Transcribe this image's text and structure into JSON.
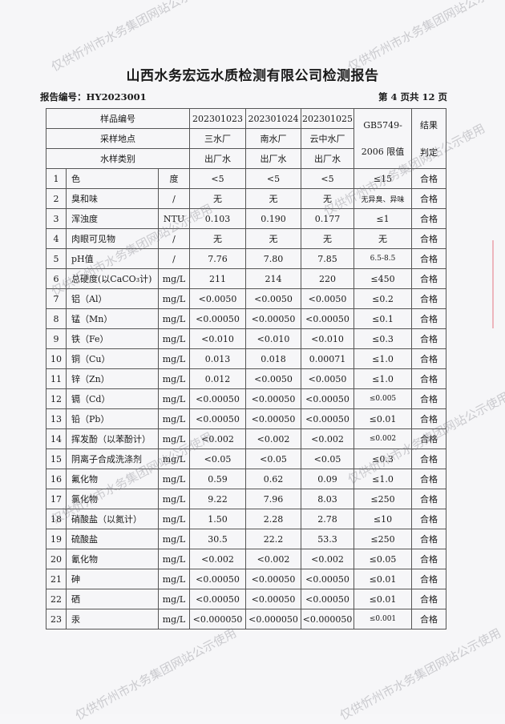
{
  "title": "山西水务宏远水质检测有限公司检测报告",
  "report_no": "报告编号：HY2023001",
  "page_info": "第 4 页共 12 页",
  "watermark": "仅供忻州市水务集团网站公示使用",
  "header": {
    "sample_no_label": "样品编号",
    "location_label": "采样地点",
    "type_label": "水样类别",
    "samples": [
      {
        "no": "202301023",
        "location": "三水厂",
        "type": "出厂水"
      },
      {
        "no": "202301024",
        "location": "南水厂",
        "type": "出厂水"
      },
      {
        "no": "202301025",
        "location": "云中水厂",
        "type": "出厂水"
      }
    ],
    "limit_label_1": "GB5749-",
    "limit_label_2": "2006 限值",
    "result_label_1": "结果",
    "result_label_2": "判定"
  },
  "rows": [
    {
      "n": "1",
      "item": "色",
      "unit": "度",
      "v": [
        "<5",
        "<5",
        "<5"
      ],
      "limit": "≤15",
      "result": "合格"
    },
    {
      "n": "2",
      "item": "臭和味",
      "unit": "/",
      "v": [
        "无",
        "无",
        "无"
      ],
      "limit": "无异臭、异味",
      "result": "合格"
    },
    {
      "n": "3",
      "item": "浑浊度",
      "unit": "NTU",
      "v": [
        "0.103",
        "0.190",
        "0.177"
      ],
      "limit": "≤1",
      "result": "合格"
    },
    {
      "n": "4",
      "item": "肉眼可见物",
      "unit": "/",
      "v": [
        "无",
        "无",
        "无"
      ],
      "limit": "无",
      "result": "合格"
    },
    {
      "n": "5",
      "item": "pH值",
      "unit": "/",
      "v": [
        "7.76",
        "7.80",
        "7.85"
      ],
      "limit": "6.5-8.5",
      "result": "合格"
    },
    {
      "n": "6",
      "item": "总硬度(以CaCO₃计)",
      "unit": "mg/L",
      "v": [
        "211",
        "214",
        "220"
      ],
      "limit": "≤450",
      "result": "合格"
    },
    {
      "n": "7",
      "item": "铝（Al）",
      "unit": "mg/L",
      "v": [
        "<0.0050",
        "<0.0050",
        "<0.0050"
      ],
      "limit": "≤0.2",
      "result": "合格"
    },
    {
      "n": "8",
      "item": "锰（Mn）",
      "unit": "mg/L",
      "v": [
        "<0.00050",
        "<0.00050",
        "<0.00050"
      ],
      "limit": "≤0.1",
      "result": "合格"
    },
    {
      "n": "9",
      "item": "铁（Fe）",
      "unit": "mg/L",
      "v": [
        "<0.010",
        "<0.010",
        "<0.010"
      ],
      "limit": "≤0.3",
      "result": "合格"
    },
    {
      "n": "10",
      "item": "铜（Cu）",
      "unit": "mg/L",
      "v": [
        "0.013",
        "0.018",
        "0.00071"
      ],
      "limit": "≤1.0",
      "result": "合格"
    },
    {
      "n": "11",
      "item": "锌（Zn）",
      "unit": "mg/L",
      "v": [
        "0.012",
        "<0.0050",
        "<0.0050"
      ],
      "limit": "≤1.0",
      "result": "合格"
    },
    {
      "n": "12",
      "item": "镉（Cd）",
      "unit": "mg/L",
      "v": [
        "<0.00050",
        "<0.00050",
        "<0.00050"
      ],
      "limit": "≤0.005",
      "result": "合格"
    },
    {
      "n": "13",
      "item": "铅（Pb）",
      "unit": "mg/L",
      "v": [
        "<0.00050",
        "<0.00050",
        "<0.00050"
      ],
      "limit": "≤0.01",
      "result": "合格"
    },
    {
      "n": "14",
      "item": "挥发酚（以苯酚计）",
      "unit": "mg/L",
      "v": [
        "<0.002",
        "<0.002",
        "<0.002"
      ],
      "limit": "≤0.002",
      "result": "合格"
    },
    {
      "n": "15",
      "item": "阴离子合成洗涤剂",
      "unit": "mg/L",
      "v": [
        "<0.05",
        "<0.05",
        "<0.05"
      ],
      "limit": "≤0.3",
      "result": "合格"
    },
    {
      "n": "16",
      "item": "氟化物",
      "unit": "mg/L",
      "v": [
        "0.59",
        "0.62",
        "0.09"
      ],
      "limit": "≤1.0",
      "result": "合格"
    },
    {
      "n": "17",
      "item": "氯化物",
      "unit": "mg/L",
      "v": [
        "9.22",
        "7.96",
        "8.03"
      ],
      "limit": "≤250",
      "result": "合格"
    },
    {
      "n": "18",
      "item": "硝酸盐（以氮计）",
      "unit": "mg/L",
      "v": [
        "1.50",
        "2.28",
        "2.78"
      ],
      "limit": "≤10",
      "result": "合格"
    },
    {
      "n": "19",
      "item": "硫酸盐",
      "unit": "mg/L",
      "v": [
        "30.5",
        "22.2",
        "53.3"
      ],
      "limit": "≤250",
      "result": "合格"
    },
    {
      "n": "20",
      "item": "氰化物",
      "unit": "mg/L",
      "v": [
        "<0.002",
        "<0.002",
        "<0.002"
      ],
      "limit": "≤0.05",
      "result": "合格"
    },
    {
      "n": "21",
      "item": "砷",
      "unit": "mg/L",
      "v": [
        "<0.00050",
        "<0.00050",
        "<0.00050"
      ],
      "limit": "≤0.01",
      "result": "合格"
    },
    {
      "n": "22",
      "item": "硒",
      "unit": "mg/L",
      "v": [
        "<0.00050",
        "<0.00050",
        "<0.00050"
      ],
      "limit": "≤0.01",
      "result": "合格"
    },
    {
      "n": "23",
      "item": "汞",
      "unit": "mg/L",
      "v": [
        "<0.000050",
        "<0.000050",
        "<0.000050"
      ],
      "limit": "≤0.001",
      "result": "合格"
    }
  ]
}
